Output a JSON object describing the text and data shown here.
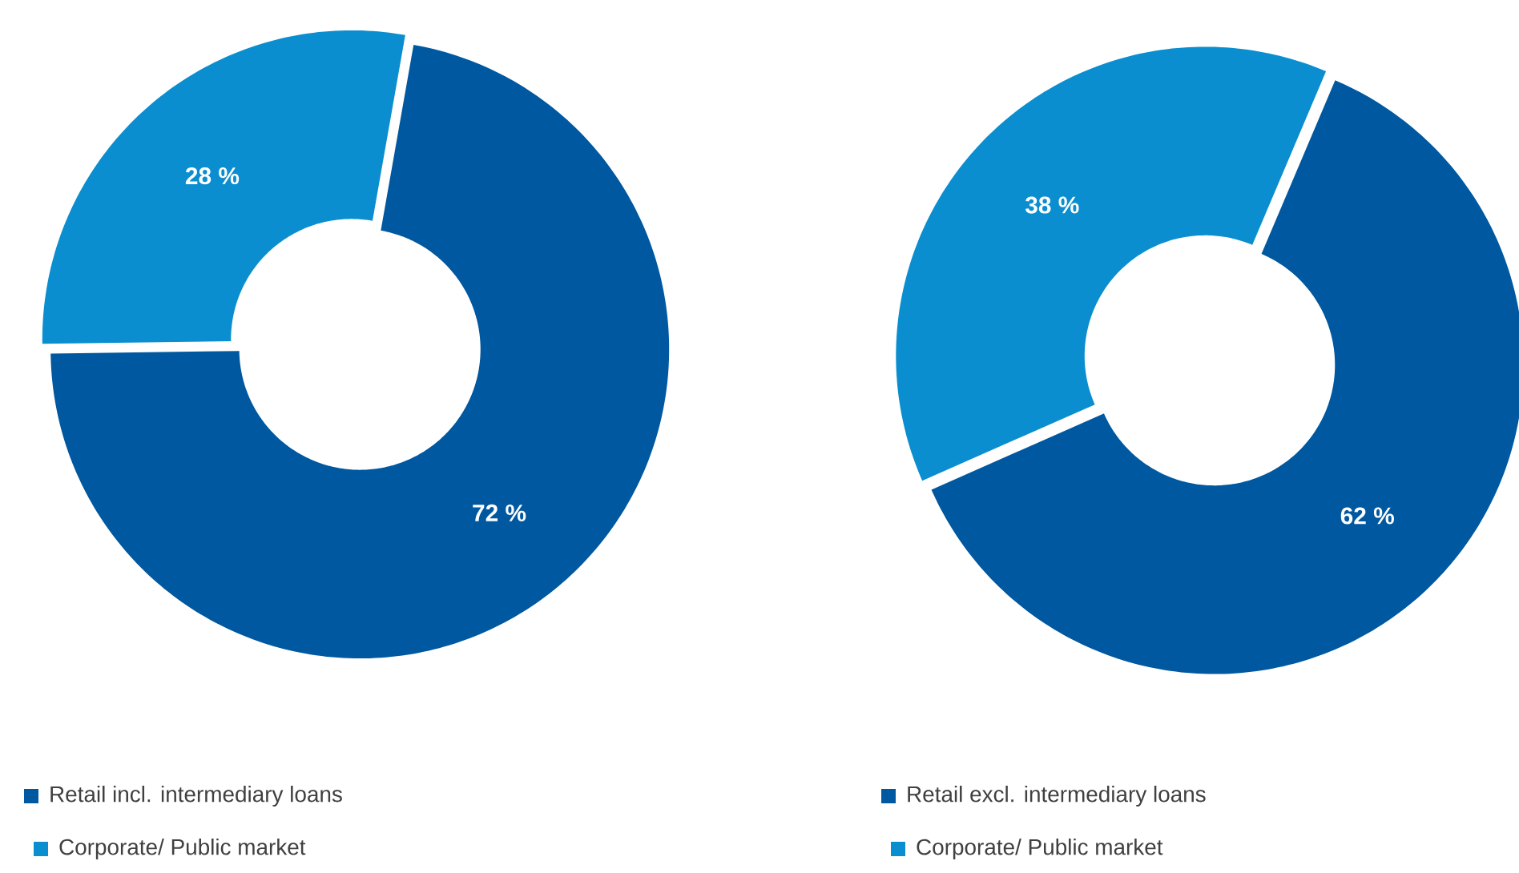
{
  "chart_data": [
    {
      "type": "donut",
      "categories": [
        "Retail incl. intermediary loans",
        "Corporate/ Public market"
      ],
      "values": [
        72,
        28
      ],
      "colors": [
        "#0058a0",
        "#0a8ed0"
      ],
      "value_labels": [
        "72 %",
        "28 %"
      ],
      "legend": "bottom left"
    },
    {
      "type": "donut",
      "categories": [
        "Retail excl. intermediary loans",
        "Corporate/ Public market"
      ],
      "values": [
        62,
        38
      ],
      "colors": [
        "#0058a0",
        "#0a8ed0"
      ],
      "value_labels": [
        "62 %",
        "38 %"
      ],
      "legend": "bottom left"
    }
  ]
}
